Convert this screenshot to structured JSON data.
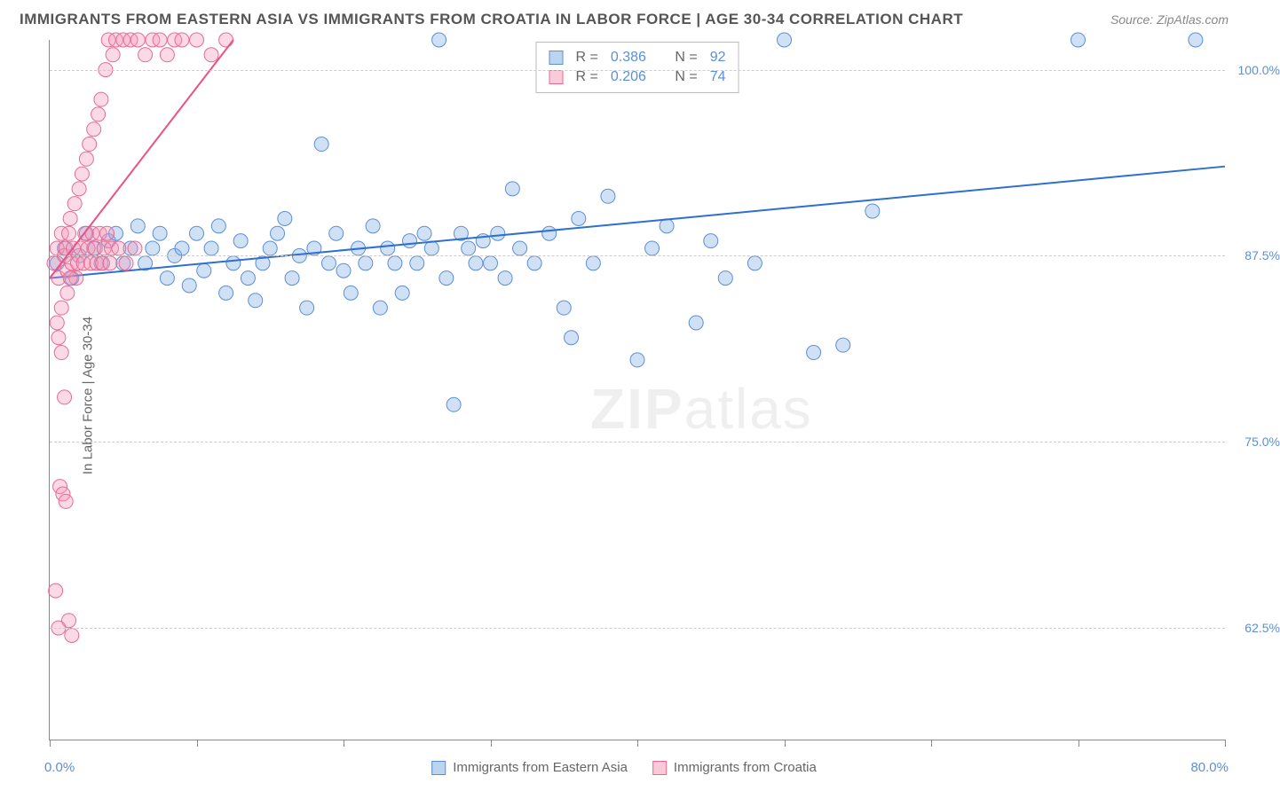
{
  "title": "IMMIGRANTS FROM EASTERN ASIA VS IMMIGRANTS FROM CROATIA IN LABOR FORCE | AGE 30-34 CORRELATION CHART",
  "source": "Source: ZipAtlas.com",
  "ylabel": "In Labor Force | Age 30-34",
  "watermark_bold": "ZIP",
  "watermark_rest": "atlas",
  "chart": {
    "type": "scatter",
    "xlim": [
      0,
      80
    ],
    "ylim": [
      55,
      102
    ],
    "xticks": [
      0,
      10,
      20,
      30,
      40,
      50,
      60,
      70,
      80
    ],
    "yticks": [
      62.5,
      75.0,
      87.5,
      100.0
    ],
    "ytick_labels": [
      "62.5%",
      "75.0%",
      "87.5%",
      "100.0%"
    ],
    "xaxis_min_label": "0.0%",
    "xaxis_max_label": "80.0%",
    "background_color": "#ffffff",
    "grid_color": "#cccccc",
    "axis_color": "#888888",
    "marker_radius": 8,
    "series": [
      {
        "name": "Immigrants from Eastern Asia",
        "color_fill": "rgba(120,170,225,0.35)",
        "color_stroke": "#5b8fd6",
        "trend_color": "#2e6fd0",
        "R": "0.386",
        "N": "92",
        "trend": {
          "x1": 0,
          "y1": 86,
          "x2": 80,
          "y2": 93.5
        },
        "points": [
          [
            0.5,
            87
          ],
          [
            1,
            88
          ],
          [
            1.5,
            86
          ],
          [
            2,
            87.5
          ],
          [
            2.5,
            89
          ],
          [
            3,
            88
          ],
          [
            3.5,
            87
          ],
          [
            4,
            88.5
          ],
          [
            4.5,
            89
          ],
          [
            5,
            87
          ],
          [
            5.5,
            88
          ],
          [
            6,
            89.5
          ],
          [
            6.5,
            87
          ],
          [
            7,
            88
          ],
          [
            7.5,
            89
          ],
          [
            8,
            86
          ],
          [
            8.5,
            87.5
          ],
          [
            9,
            88
          ],
          [
            9.5,
            85.5
          ],
          [
            10,
            89
          ],
          [
            10.5,
            86.5
          ],
          [
            11,
            88
          ],
          [
            11.5,
            89.5
          ],
          [
            12,
            85
          ],
          [
            12.5,
            87
          ],
          [
            13,
            88.5
          ],
          [
            13.5,
            86
          ],
          [
            14,
            84.5
          ],
          [
            14.5,
            87
          ],
          [
            15,
            88
          ],
          [
            15.5,
            89
          ],
          [
            16,
            90
          ],
          [
            16.5,
            86
          ],
          [
            17,
            87.5
          ],
          [
            17.5,
            84
          ],
          [
            18,
            88
          ],
          [
            18.5,
            95
          ],
          [
            19,
            87
          ],
          [
            19.5,
            89
          ],
          [
            20,
            86.5
          ],
          [
            20.5,
            85
          ],
          [
            21,
            88
          ],
          [
            21.5,
            87
          ],
          [
            22,
            89.5
          ],
          [
            22.5,
            84
          ],
          [
            23,
            88
          ],
          [
            23.5,
            87
          ],
          [
            24,
            85
          ],
          [
            24.5,
            88.5
          ],
          [
            25,
            87
          ],
          [
            25.5,
            89
          ],
          [
            26,
            88
          ],
          [
            26.5,
            102
          ],
          [
            27,
            86
          ],
          [
            27.5,
            77.5
          ],
          [
            28,
            89
          ],
          [
            28.5,
            88
          ],
          [
            29,
            87
          ],
          [
            29.5,
            88.5
          ],
          [
            30,
            87
          ],
          [
            30.5,
            89
          ],
          [
            31,
            86
          ],
          [
            31.5,
            92
          ],
          [
            32,
            88
          ],
          [
            33,
            87
          ],
          [
            34,
            89
          ],
          [
            35,
            84
          ],
          [
            35.5,
            82
          ],
          [
            36,
            90
          ],
          [
            37,
            87
          ],
          [
            38,
            91.5
          ],
          [
            40,
            80.5
          ],
          [
            41,
            88
          ],
          [
            42,
            89.5
          ],
          [
            44,
            83
          ],
          [
            45,
            88.5
          ],
          [
            46,
            86
          ],
          [
            48,
            87
          ],
          [
            50,
            102
          ],
          [
            52,
            81
          ],
          [
            54,
            81.5
          ],
          [
            56,
            90.5
          ],
          [
            70,
            102
          ],
          [
            78,
            102
          ]
        ]
      },
      {
        "name": "Immigrants from Croatia",
        "color_fill": "rgba(245,150,180,0.35)",
        "color_stroke": "#e86a94",
        "trend_color": "#ec5088",
        "R": "0.206",
        "N": "74",
        "trend": {
          "x1": 0,
          "y1": 86,
          "x2": 12.5,
          "y2": 102
        },
        "points": [
          [
            0.3,
            87
          ],
          [
            0.5,
            88
          ],
          [
            0.6,
            86
          ],
          [
            0.8,
            89
          ],
          [
            1.0,
            87.5
          ],
          [
            1.1,
            88
          ],
          [
            1.2,
            86.5
          ],
          [
            1.3,
            89
          ],
          [
            1.4,
            90
          ],
          [
            1.5,
            87
          ],
          [
            1.6,
            88
          ],
          [
            1.7,
            91
          ],
          [
            1.8,
            86
          ],
          [
            1.9,
            87
          ],
          [
            2.0,
            92
          ],
          [
            2.1,
            88
          ],
          [
            2.2,
            93
          ],
          [
            2.3,
            87
          ],
          [
            2.4,
            89
          ],
          [
            2.5,
            94
          ],
          [
            2.6,
            88
          ],
          [
            2.7,
            95
          ],
          [
            2.8,
            87
          ],
          [
            2.9,
            89
          ],
          [
            3.0,
            96
          ],
          [
            3.1,
            88
          ],
          [
            3.2,
            87
          ],
          [
            3.3,
            97
          ],
          [
            3.4,
            89
          ],
          [
            3.5,
            98
          ],
          [
            3.6,
            87
          ],
          [
            3.7,
            88
          ],
          [
            3.8,
            100
          ],
          [
            3.9,
            89
          ],
          [
            4.0,
            102
          ],
          [
            4.1,
            87
          ],
          [
            4.2,
            88
          ],
          [
            4.3,
            101
          ],
          [
            4.5,
            102
          ],
          [
            4.7,
            88
          ],
          [
            5.0,
            102
          ],
          [
            5.2,
            87
          ],
          [
            5.5,
            102
          ],
          [
            5.8,
            88
          ],
          [
            6.0,
            102
          ],
          [
            6.5,
            101
          ],
          [
            7.0,
            102
          ],
          [
            7.5,
            102
          ],
          [
            8.0,
            101
          ],
          [
            8.5,
            102
          ],
          [
            9.0,
            102
          ],
          [
            10.0,
            102
          ],
          [
            11.0,
            101
          ],
          [
            12.0,
            102
          ],
          [
            0.5,
            83
          ],
          [
            0.6,
            82
          ],
          [
            0.8,
            81
          ],
          [
            1.0,
            78
          ],
          [
            0.7,
            72
          ],
          [
            0.9,
            71.5
          ],
          [
            1.1,
            71
          ],
          [
            1.3,
            63
          ],
          [
            1.5,
            62
          ],
          [
            0.4,
            65
          ],
          [
            0.6,
            62.5
          ],
          [
            0.8,
            84
          ],
          [
            1.2,
            85
          ],
          [
            1.4,
            86
          ]
        ]
      }
    ],
    "legend": {
      "series1_label": "Immigrants from Eastern Asia",
      "series2_label": "Immigrants from Croatia"
    },
    "stats_box": {
      "r_label": "R =",
      "n_label": "N ="
    }
  }
}
